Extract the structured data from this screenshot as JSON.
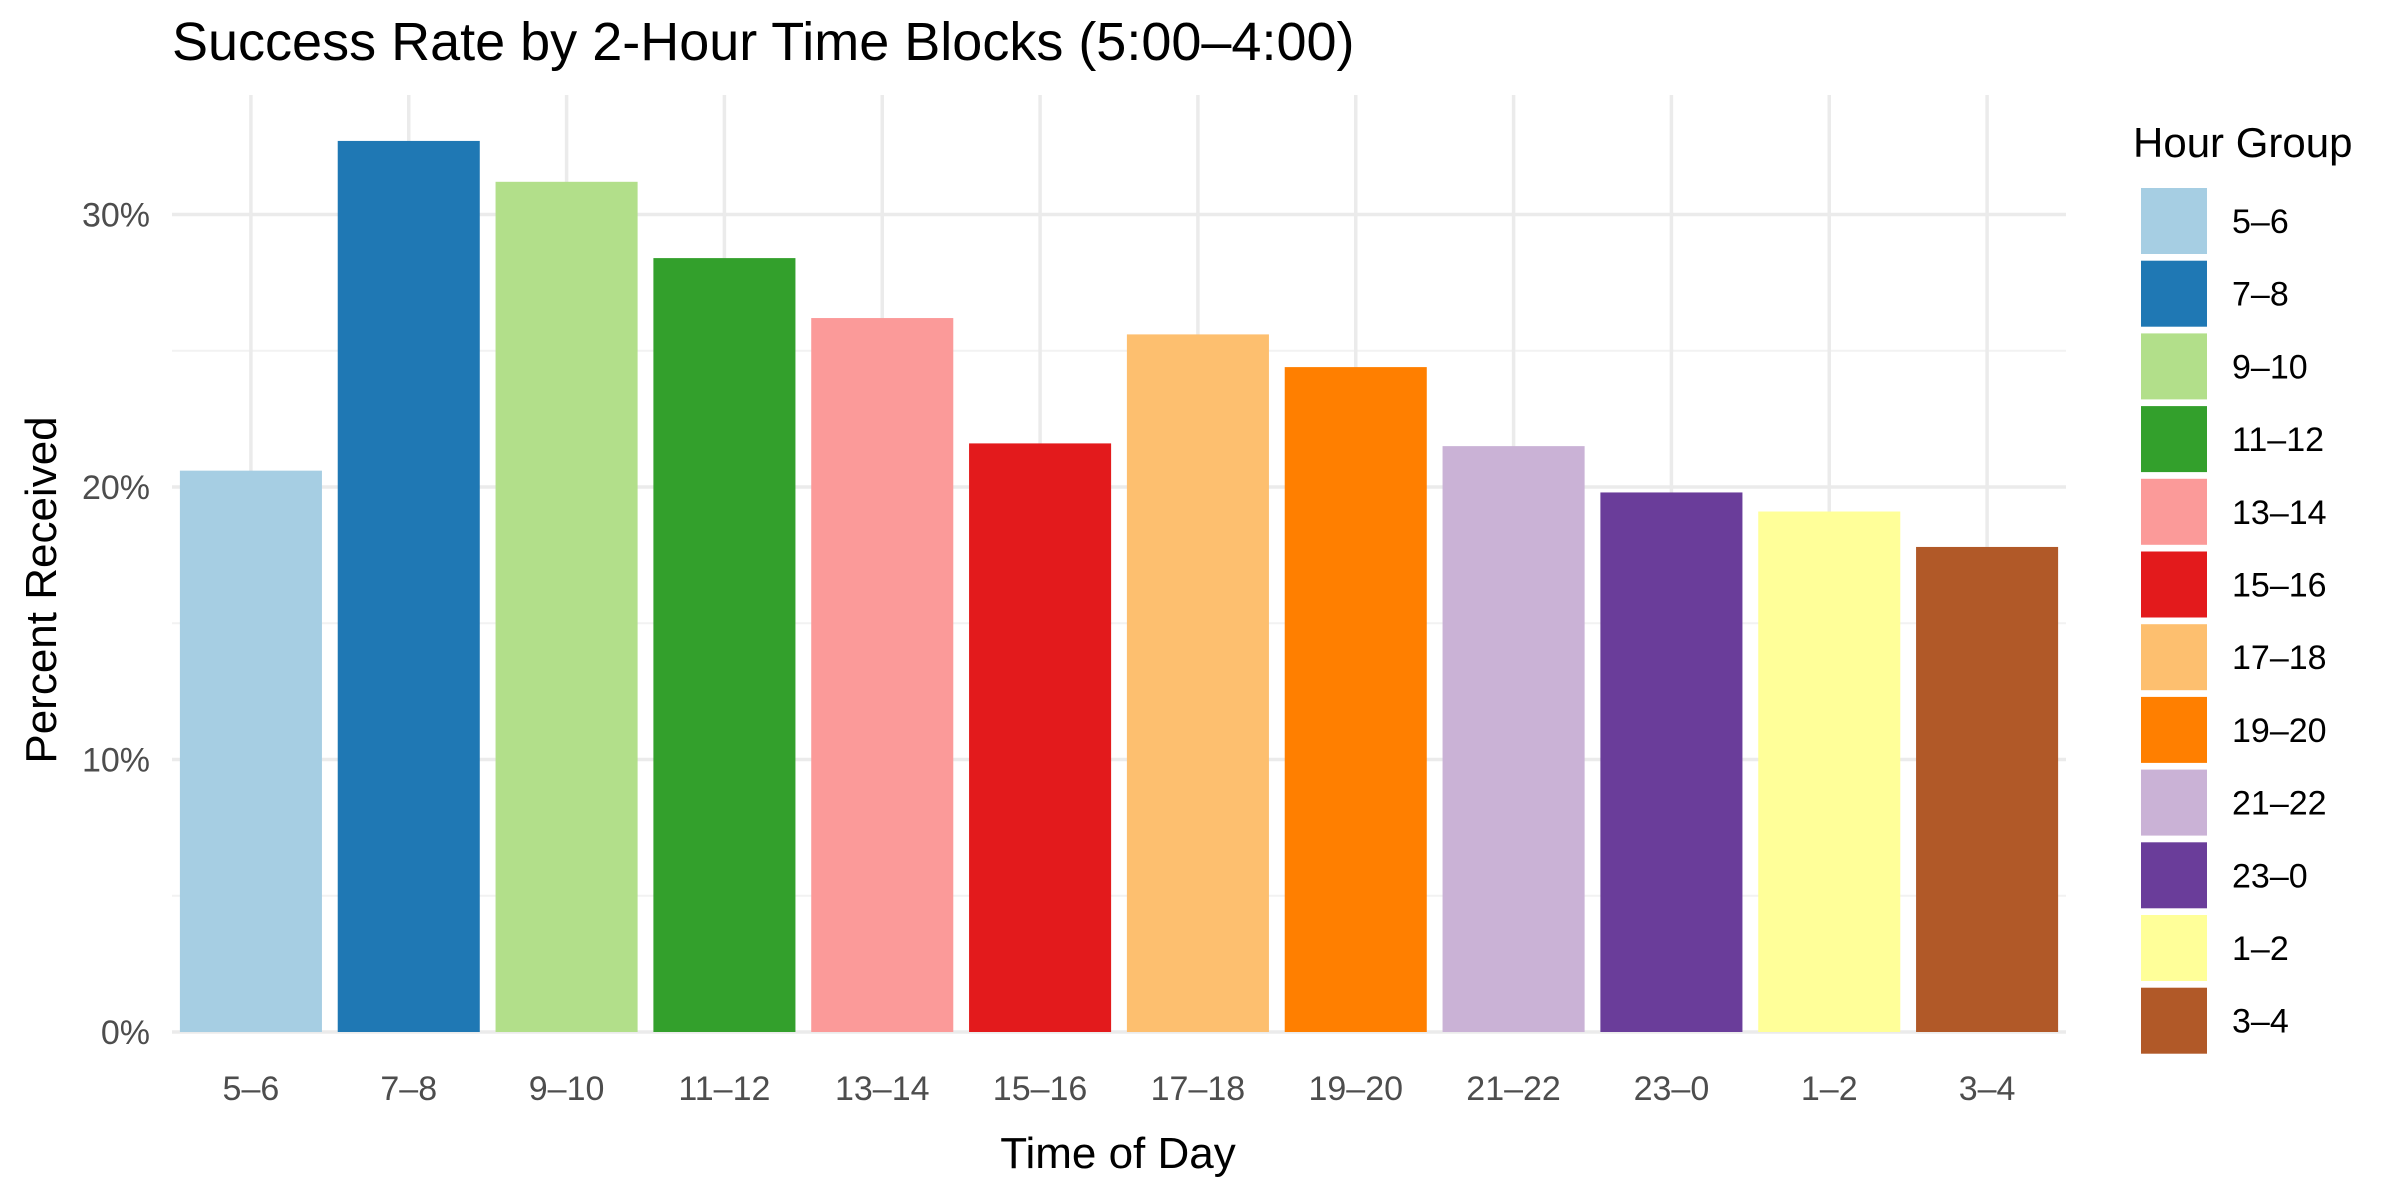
{
  "chart_data": {
    "type": "bar",
    "title": "Success Rate by 2-Hour Time Blocks (5:00–4:00)",
    "xlabel": "Time of Day",
    "ylabel": "Percent Received",
    "categories": [
      "5–6",
      "7–8",
      "9–10",
      "11–12",
      "13–14",
      "15–16",
      "17–18",
      "19–20",
      "21–22",
      "23–0",
      "1–2",
      "3–4"
    ],
    "values": [
      20.6,
      32.7,
      31.2,
      28.4,
      26.2,
      21.6,
      25.6,
      24.4,
      21.5,
      19.8,
      19.1,
      17.8
    ],
    "colors": [
      "#a6cee3",
      "#1f78b4",
      "#b2df8a",
      "#33a02c",
      "#fb9a99",
      "#e31a1c",
      "#fdbf6f",
      "#ff7f00",
      "#cab2d6",
      "#6a3d9a",
      "#ffff99",
      "#b15928"
    ],
    "y_ticks": [
      0,
      10,
      20,
      30
    ],
    "y_tick_labels": [
      "0%",
      "10%",
      "20%",
      "30%"
    ],
    "ylim": [
      0,
      34
    ],
    "grid": true,
    "legend": {
      "title": "Hour Group",
      "position": "right"
    }
  }
}
